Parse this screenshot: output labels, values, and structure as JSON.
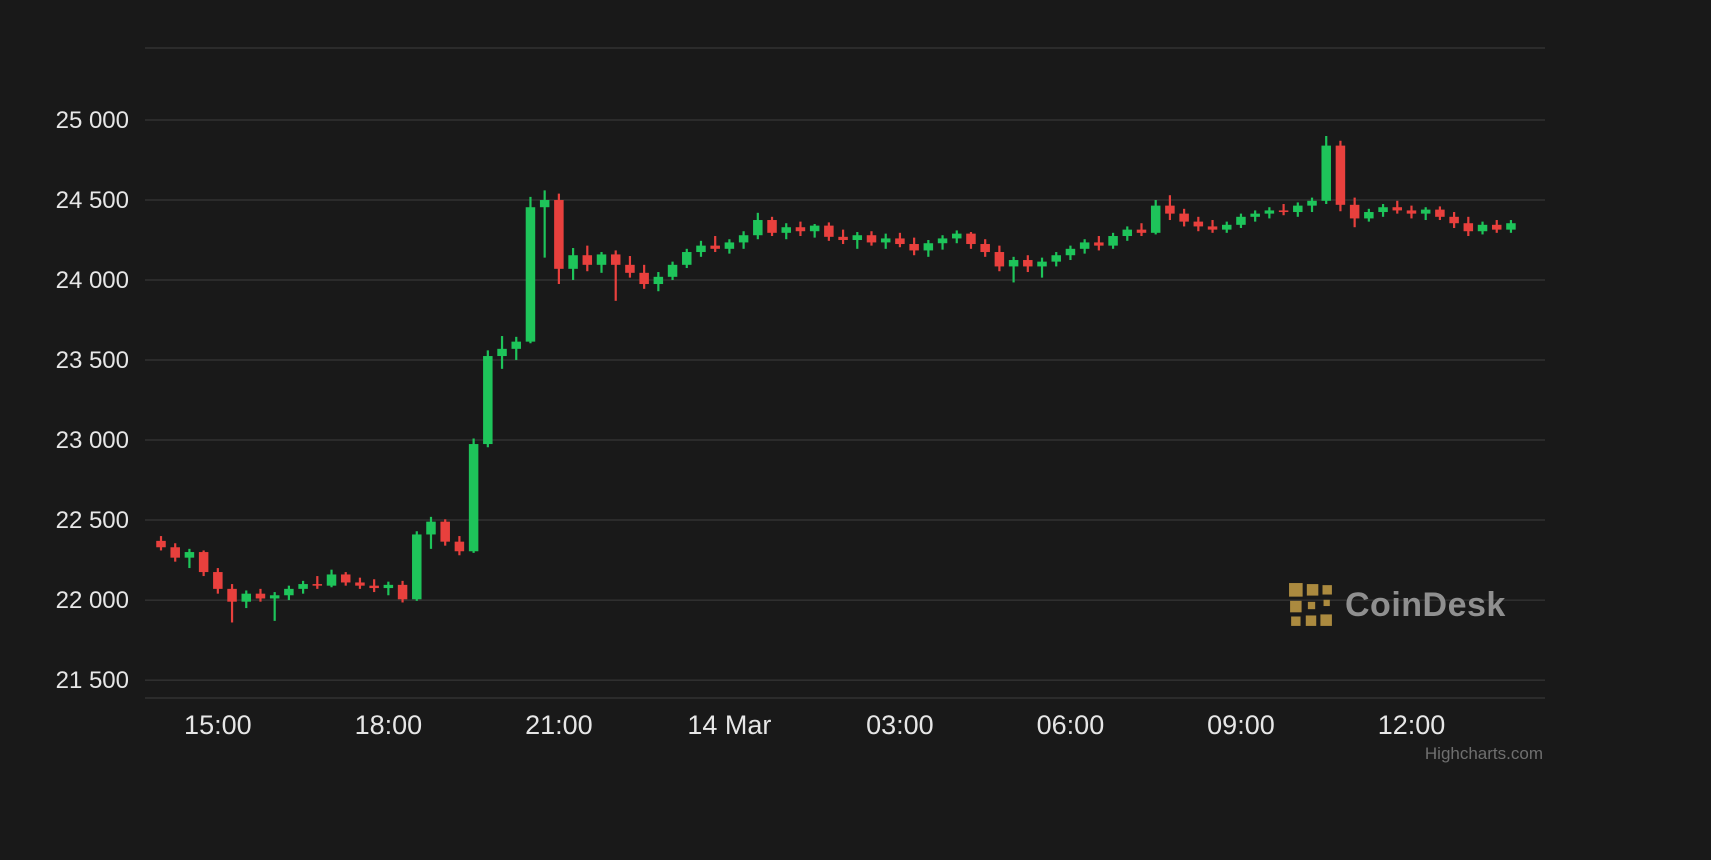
{
  "branding": {
    "watermark": "CoinDesk",
    "credit": "Highcharts.com",
    "logo_color": "#ab8a3f",
    "watermark_text_color": "#8f8f8f"
  },
  "chart_data": {
    "type": "candlestick",
    "title": "",
    "xlabel": "",
    "ylabel": "",
    "interval": "15m",
    "grid": true,
    "legend": false,
    "ylim": [
      21388,
      25450
    ],
    "colors": {
      "up": "#1ec45a",
      "down": "#e8403d",
      "background": "#191919",
      "gridline": "#3d3d3d",
      "axis_label": "#e6e6e6"
    },
    "y_ticks": [
      {
        "value": 25000,
        "label": "25 000"
      },
      {
        "value": 24500,
        "label": "24 500"
      },
      {
        "value": 24000,
        "label": "24 000"
      },
      {
        "value": 23500,
        "label": "23 500"
      },
      {
        "value": 23000,
        "label": "23 000"
      },
      {
        "value": 22500,
        "label": "22 500"
      },
      {
        "value": 22000,
        "label": "22 000"
      },
      {
        "value": 21500,
        "label": "21 500"
      }
    ],
    "x_ticks": [
      {
        "index": 4,
        "label": "15:00"
      },
      {
        "index": 16,
        "label": "18:00"
      },
      {
        "index": 28,
        "label": "21:00"
      },
      {
        "index": 40,
        "label": "14 Mar"
      },
      {
        "index": 52,
        "label": "03:00"
      },
      {
        "index": 64,
        "label": "06:00"
      },
      {
        "index": 76,
        "label": "09:00"
      },
      {
        "index": 88,
        "label": "12:00"
      }
    ],
    "candles": [
      [
        "14:00",
        22370,
        22400,
        22310,
        22330
      ],
      [
        "14:15",
        22330,
        22355,
        22240,
        22265
      ],
      [
        "14:30",
        22265,
        22320,
        22200,
        22300
      ],
      [
        "14:45",
        22300,
        22310,
        22150,
        22175
      ],
      [
        "15:00",
        22175,
        22200,
        22040,
        22070
      ],
      [
        "15:15",
        22070,
        22100,
        21860,
        21990
      ],
      [
        "15:30",
        21990,
        22060,
        21950,
        22040
      ],
      [
        "15:45",
        22040,
        22070,
        21990,
        22010
      ],
      [
        "16:00",
        22010,
        22050,
        21870,
        22030
      ],
      [
        "16:15",
        22030,
        22090,
        22000,
        22070
      ],
      [
        "16:30",
        22070,
        22120,
        22040,
        22100
      ],
      [
        "16:45",
        22100,
        22150,
        22070,
        22090
      ],
      [
        "17:00",
        22090,
        22190,
        22080,
        22160
      ],
      [
        "17:15",
        22160,
        22175,
        22090,
        22110
      ],
      [
        "17:30",
        22110,
        22140,
        22070,
        22090
      ],
      [
        "17:45",
        22090,
        22130,
        22050,
        22075
      ],
      [
        "18:00",
        22075,
        22115,
        22030,
        22095
      ],
      [
        "18:15",
        22095,
        22120,
        21985,
        22005
      ],
      [
        "18:30",
        22005,
        22430,
        21995,
        22410
      ],
      [
        "18:45",
        22410,
        22520,
        22320,
        22490
      ],
      [
        "19:00",
        22490,
        22505,
        22340,
        22365
      ],
      [
        "19:15",
        22365,
        22400,
        22280,
        22305
      ],
      [
        "19:30",
        22305,
        23010,
        22295,
        22975
      ],
      [
        "19:45",
        22975,
        23560,
        22955,
        23525
      ],
      [
        "20:00",
        23525,
        23650,
        23445,
        23570
      ],
      [
        "20:15",
        23570,
        23645,
        23500,
        23615
      ],
      [
        "20:30",
        23615,
        24520,
        23605,
        24455
      ],
      [
        "20:45",
        24455,
        24560,
        24140,
        24500
      ],
      [
        "21:00",
        24500,
        24540,
        23975,
        24070
      ],
      [
        "21:15",
        24070,
        24200,
        24000,
        24155
      ],
      [
        "21:30",
        24155,
        24215,
        24055,
        24095
      ],
      [
        "21:45",
        24095,
        24175,
        24045,
        24160
      ],
      [
        "22:00",
        24160,
        24185,
        23870,
        24095
      ],
      [
        "22:15",
        24095,
        24150,
        24015,
        24045
      ],
      [
        "22:30",
        24045,
        24095,
        23945,
        23975
      ],
      [
        "22:45",
        23975,
        24050,
        23930,
        24020
      ],
      [
        "23:00",
        24020,
        24115,
        24000,
        24095
      ],
      [
        "23:15",
        24095,
        24195,
        24075,
        24175
      ],
      [
        "23:30",
        24175,
        24245,
        24145,
        24215
      ],
      [
        "23:45",
        24215,
        24275,
        24175,
        24195
      ],
      [
        "00:00",
        24195,
        24255,
        24165,
        24235
      ],
      [
        "00:15",
        24235,
        24305,
        24195,
        24280
      ],
      [
        "00:30",
        24280,
        24420,
        24255,
        24375
      ],
      [
        "00:45",
        24375,
        24395,
        24275,
        24295
      ],
      [
        "01:00",
        24295,
        24355,
        24255,
        24330
      ],
      [
        "01:15",
        24330,
        24365,
        24275,
        24305
      ],
      [
        "01:30",
        24305,
        24350,
        24265,
        24340
      ],
      [
        "01:45",
        24340,
        24360,
        24245,
        24270
      ],
      [
        "02:00",
        24270,
        24315,
        24225,
        24250
      ],
      [
        "02:15",
        24250,
        24300,
        24195,
        24280
      ],
      [
        "02:30",
        24280,
        24305,
        24215,
        24235
      ],
      [
        "02:45",
        24235,
        24290,
        24195,
        24260
      ],
      [
        "03:00",
        24260,
        24295,
        24205,
        24225
      ],
      [
        "03:15",
        24225,
        24265,
        24155,
        24185
      ],
      [
        "03:30",
        24185,
        24250,
        24145,
        24230
      ],
      [
        "03:45",
        24230,
        24280,
        24190,
        24260
      ],
      [
        "04:00",
        24260,
        24310,
        24230,
        24290
      ],
      [
        "04:15",
        24290,
        24300,
        24195,
        24225
      ],
      [
        "04:30",
        24225,
        24255,
        24145,
        24175
      ],
      [
        "04:45",
        24175,
        24215,
        24055,
        24085
      ],
      [
        "05:00",
        24085,
        24145,
        23985,
        24125
      ],
      [
        "05:15",
        24125,
        24155,
        24050,
        24085
      ],
      [
        "05:30",
        24085,
        24140,
        24015,
        24115
      ],
      [
        "05:45",
        24115,
        24175,
        24085,
        24155
      ],
      [
        "06:00",
        24155,
        24215,
        24125,
        24195
      ],
      [
        "06:15",
        24195,
        24255,
        24165,
        24235
      ],
      [
        "06:30",
        24235,
        24275,
        24185,
        24215
      ],
      [
        "06:45",
        24215,
        24295,
        24195,
        24275
      ],
      [
        "07:00",
        24275,
        24335,
        24245,
        24315
      ],
      [
        "07:15",
        24315,
        24355,
        24275,
        24295
      ],
      [
        "07:30",
        24295,
        24500,
        24285,
        24465
      ],
      [
        "07:45",
        24465,
        24530,
        24375,
        24415
      ],
      [
        "08:00",
        24415,
        24445,
        24335,
        24365
      ],
      [
        "08:15",
        24365,
        24395,
        24305,
        24335
      ],
      [
        "08:30",
        24335,
        24375,
        24295,
        24315
      ],
      [
        "08:45",
        24315,
        24365,
        24295,
        24345
      ],
      [
        "09:00",
        24345,
        24415,
        24325,
        24395
      ],
      [
        "09:15",
        24395,
        24435,
        24365,
        24415
      ],
      [
        "09:30",
        24415,
        24455,
        24385,
        24435
      ],
      [
        "09:45",
        24435,
        24475,
        24405,
        24425
      ],
      [
        "10:00",
        24425,
        24485,
        24395,
        24465
      ],
      [
        "10:15",
        24465,
        24515,
        24425,
        24495
      ],
      [
        "10:30",
        24495,
        24900,
        24475,
        24840
      ],
      [
        "10:45",
        24840,
        24870,
        24430,
        24470
      ],
      [
        "11:00",
        24470,
        24515,
        24330,
        24385
      ],
      [
        "11:15",
        24385,
        24445,
        24365,
        24425
      ],
      [
        "11:30",
        24425,
        24475,
        24395,
        24455
      ],
      [
        "11:45",
        24455,
        24495,
        24415,
        24435
      ],
      [
        "12:00",
        24435,
        24465,
        24385,
        24415
      ],
      [
        "12:15",
        24415,
        24455,
        24375,
        24440
      ],
      [
        "12:30",
        24440,
        24460,
        24375,
        24395
      ],
      [
        "12:45",
        24395,
        24425,
        24325,
        24355
      ],
      [
        "13:00",
        24355,
        24395,
        24275,
        24305
      ],
      [
        "13:15",
        24305,
        24365,
        24285,
        24345
      ],
      [
        "13:30",
        24345,
        24375,
        24295,
        24315
      ],
      [
        "13:45",
        24315,
        24375,
        24295,
        24355
      ]
    ]
  }
}
